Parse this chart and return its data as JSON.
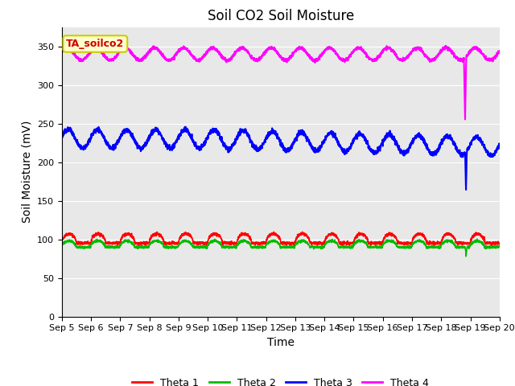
{
  "title": "Soil CO2 Soil Moisture",
  "ylabel": "Soil Moisture (mV)",
  "xlabel": "Time",
  "ylim": [
    0,
    375
  ],
  "xlim": [
    0,
    15
  ],
  "x_tick_labels": [
    "Sep 5",
    "Sep 6",
    "Sep 7",
    "Sep 8",
    "Sep 9",
    "Sep 10",
    "Sep 11",
    "Sep 12",
    "Sep 13",
    "Sep 14",
    "Sep 15",
    "Sep 16",
    "Sep 17",
    "Sep 18",
    "Sep 19",
    "Sep 20"
  ],
  "legend_labels": [
    "Theta 1",
    "Theta 2",
    "Theta 3",
    "Theta 4"
  ],
  "colors": {
    "theta1": "#ff0000",
    "theta2": "#00bb00",
    "theta3": "#0000ff",
    "theta4": "#ff00ff"
  },
  "annotation_text": "TA_soilco2",
  "annotation_color": "#cc0000",
  "annotation_bg": "#ffffcc",
  "annotation_border": "#cccc00",
  "plot_bg": "#e8e8e8",
  "title_fontsize": 12,
  "axis_label_fontsize": 10,
  "tick_fontsize": 8
}
